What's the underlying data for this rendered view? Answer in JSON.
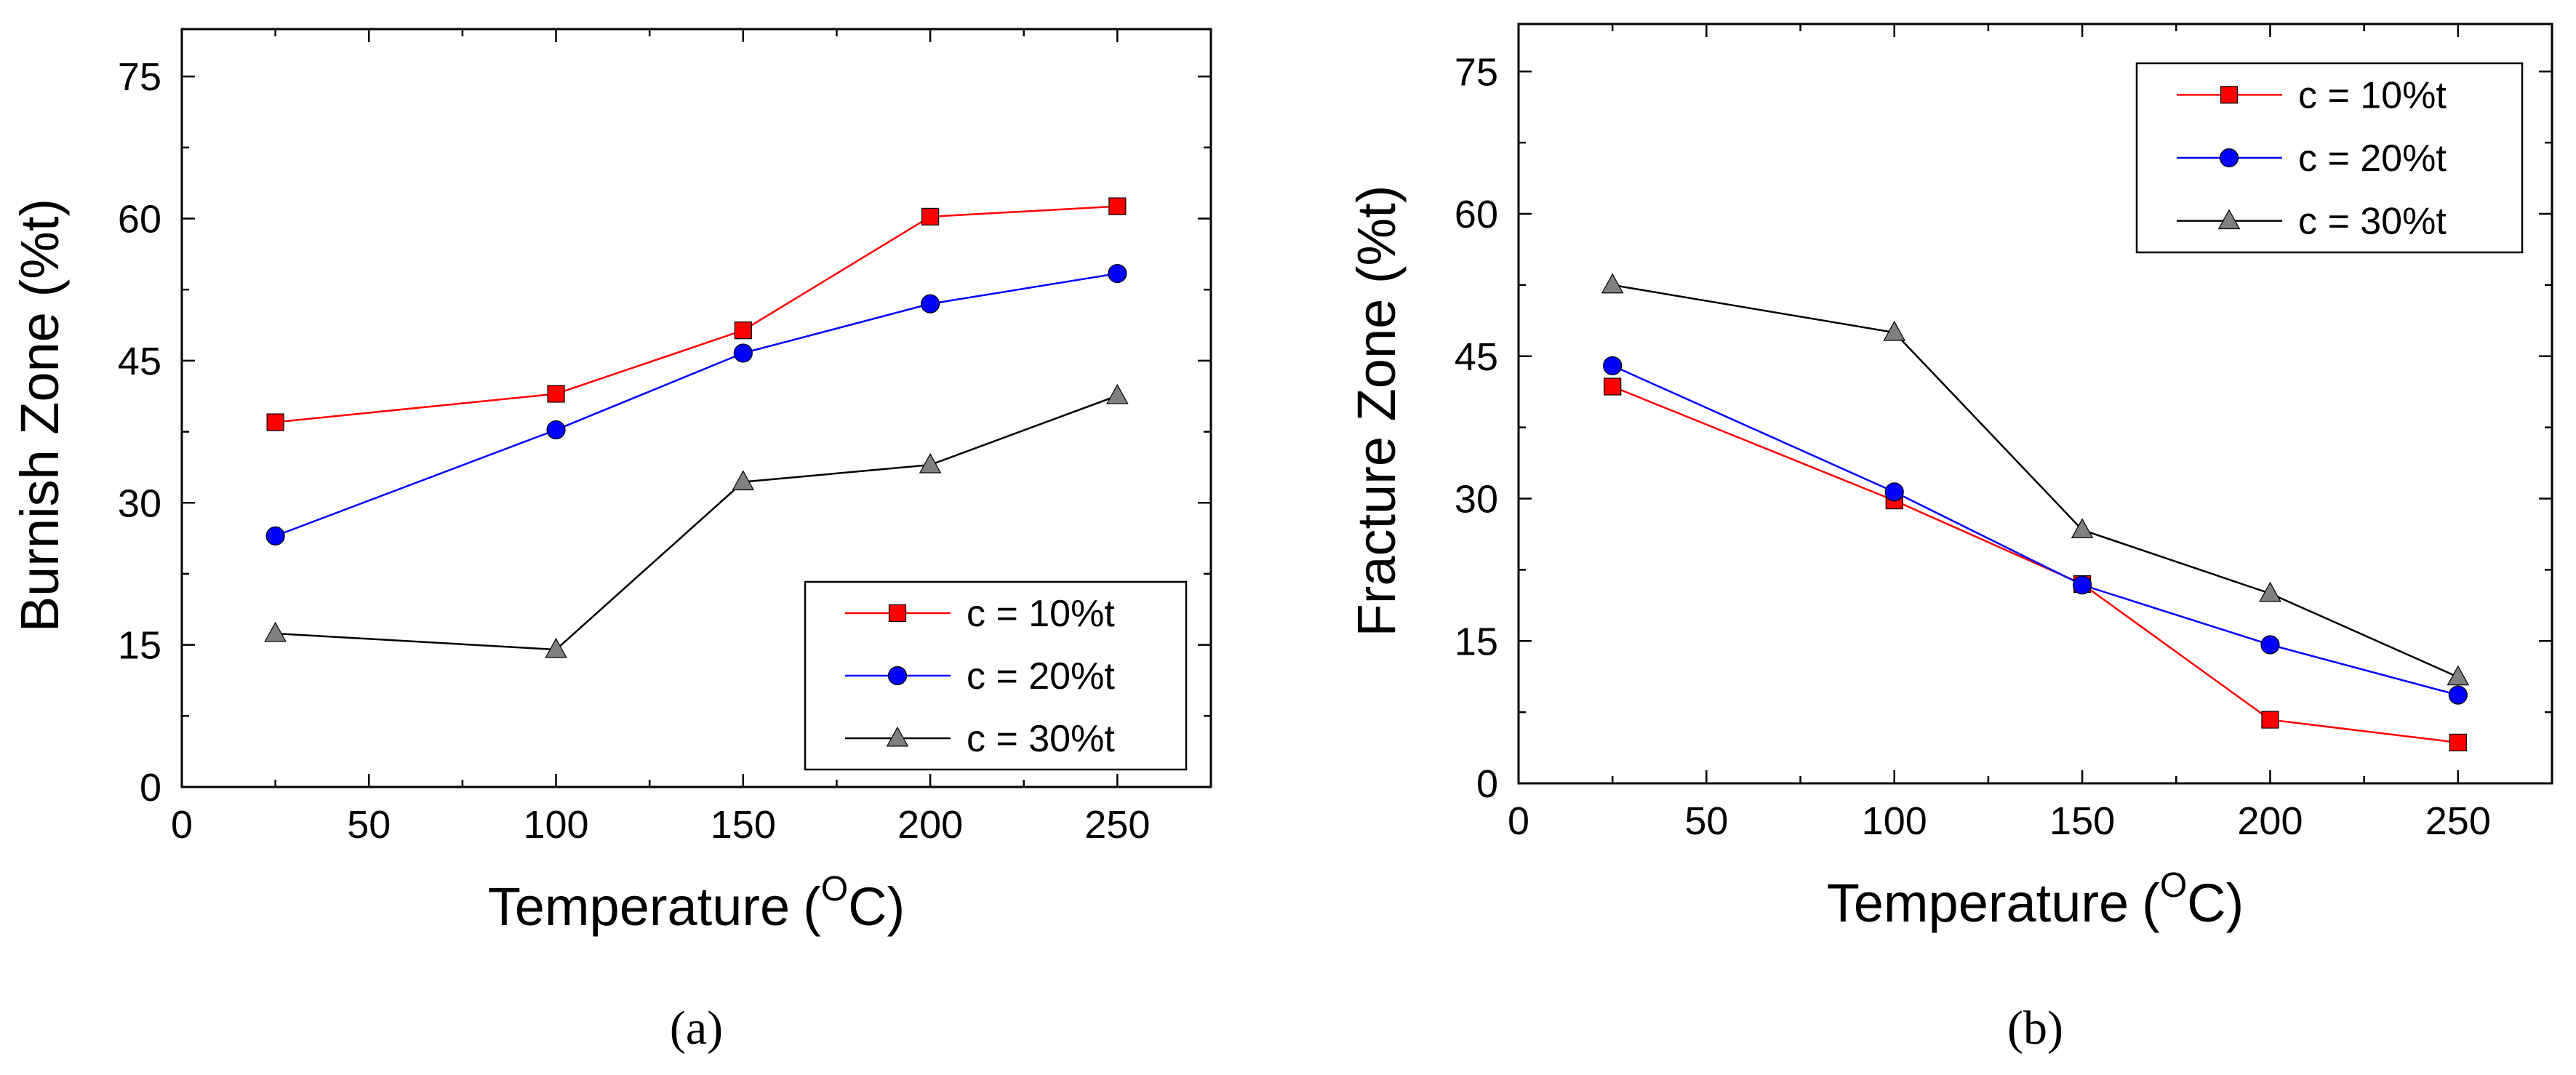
{
  "chart_data": [
    {
      "panel_label": "(a)",
      "type": "line",
      "title": "",
      "xlabel": "Temperature",
      "xlabel_unit_open": "(",
      "xlabel_unit_sup": "O",
      "xlabel_unit_close": "C)",
      "ylabel": "Burnish Zone (%t)",
      "xlim": [
        0,
        275
      ],
      "ylim": [
        0,
        80
      ],
      "xticks": [
        0,
        50,
        100,
        150,
        200,
        250
      ],
      "yticks": [
        0,
        15,
        30,
        45,
        60,
        75
      ],
      "x_minor_step": 25,
      "y_minor_step": 7.5,
      "grid": false,
      "legend_position": "lower-right",
      "x": [
        25,
        100,
        150,
        200,
        250
      ],
      "series": [
        {
          "name": "c = 10%t",
          "color": "#ff0000",
          "marker": "square",
          "marker_fill": "#ff0000",
          "values": [
            38.5,
            41.5,
            48.2,
            60.2,
            61.3
          ]
        },
        {
          "name": "c = 20%t",
          "color": "#0000ff",
          "marker": "circle",
          "marker_fill": "#0000ff",
          "values": [
            26.5,
            37.7,
            45.8,
            51.0,
            54.2
          ]
        },
        {
          "name": "c = 30%t",
          "color": "#000000",
          "marker": "triangle",
          "marker_fill": "#808080",
          "values": [
            16.2,
            14.5,
            32.2,
            34.0,
            41.3
          ]
        }
      ]
    },
    {
      "panel_label": "(b)",
      "type": "line",
      "title": "",
      "xlabel": "Temperature",
      "xlabel_unit_open": "(",
      "xlabel_unit_sup": "O",
      "xlabel_unit_close": "C)",
      "ylabel": "Fracture Zone (%t)",
      "xlim": [
        0,
        275
      ],
      "ylim": [
        0,
        80
      ],
      "xticks": [
        0,
        50,
        100,
        150,
        200,
        250
      ],
      "yticks": [
        0,
        15,
        30,
        45,
        60,
        75
      ],
      "x_minor_step": 25,
      "y_minor_step": 7.5,
      "grid": false,
      "legend_position": "upper-right",
      "x": [
        25,
        100,
        150,
        200,
        250
      ],
      "series": [
        {
          "name": "c = 10%t",
          "color": "#ff0000",
          "marker": "square",
          "marker_fill": "#ff0000",
          "values": [
            41.8,
            29.8,
            21.0,
            6.7,
            4.3
          ]
        },
        {
          "name": "c = 20%t",
          "color": "#0000ff",
          "marker": "circle",
          "marker_fill": "#0000ff",
          "values": [
            44.0,
            30.7,
            20.9,
            14.6,
            9.3
          ]
        },
        {
          "name": "c = 30%t",
          "color": "#000000",
          "marker": "triangle",
          "marker_fill": "#808080",
          "values": [
            52.5,
            47.5,
            26.7,
            20.0,
            11.2
          ]
        }
      ]
    }
  ]
}
